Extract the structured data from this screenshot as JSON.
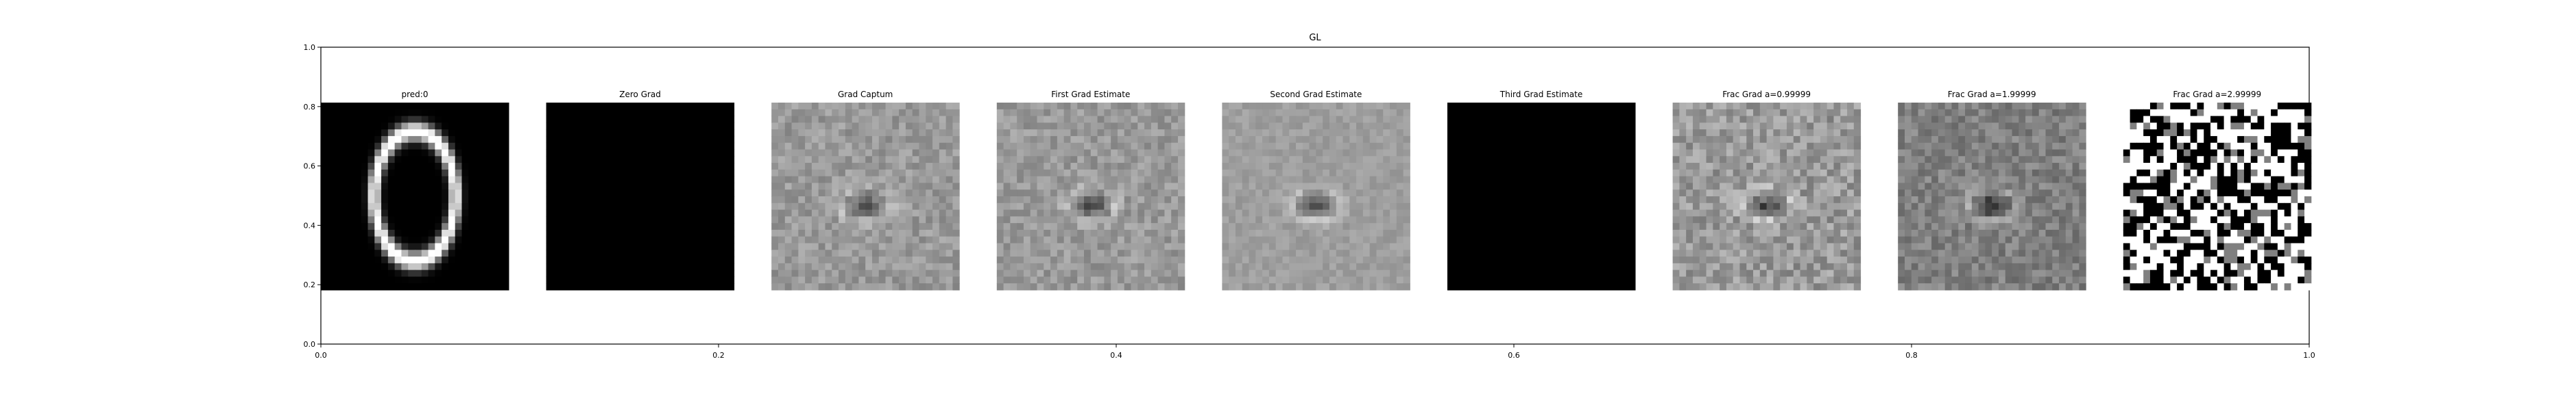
{
  "chart_data": {
    "type": "heatmap",
    "title": "GL",
    "xlim": [
      0.0,
      1.0
    ],
    "ylim": [
      0.0,
      1.0
    ],
    "xticks": [
      "0.0",
      "0.2",
      "0.4",
      "0.6",
      "0.8",
      "1.0"
    ],
    "yticks": [
      "0.0",
      "0.2",
      "0.4",
      "0.6",
      "0.8",
      "1.0"
    ],
    "grid": false,
    "colormap": "gray",
    "panel_grid": [
      28,
      28
    ],
    "panels": [
      {
        "title": "pred:0",
        "pattern": "digit-zero"
      },
      {
        "title": "Zero Grad",
        "pattern": "all-black"
      },
      {
        "title": "Grad Captum",
        "pattern": "gradient-noise"
      },
      {
        "title": "First Grad Estimate",
        "pattern": "gradient-noise"
      },
      {
        "title": "Second Grad Estimate",
        "pattern": "gradient-noise-soft"
      },
      {
        "title": "Third Grad Estimate",
        "pattern": "all-black"
      },
      {
        "title": "Frac Grad a=0.99999",
        "pattern": "gradient-noise-strong"
      },
      {
        "title": "Frac Grad a=1.99999",
        "pattern": "gradient-noise-dark"
      },
      {
        "title": "Frac Grad a=2.99999",
        "pattern": "binary-noise"
      }
    ]
  }
}
